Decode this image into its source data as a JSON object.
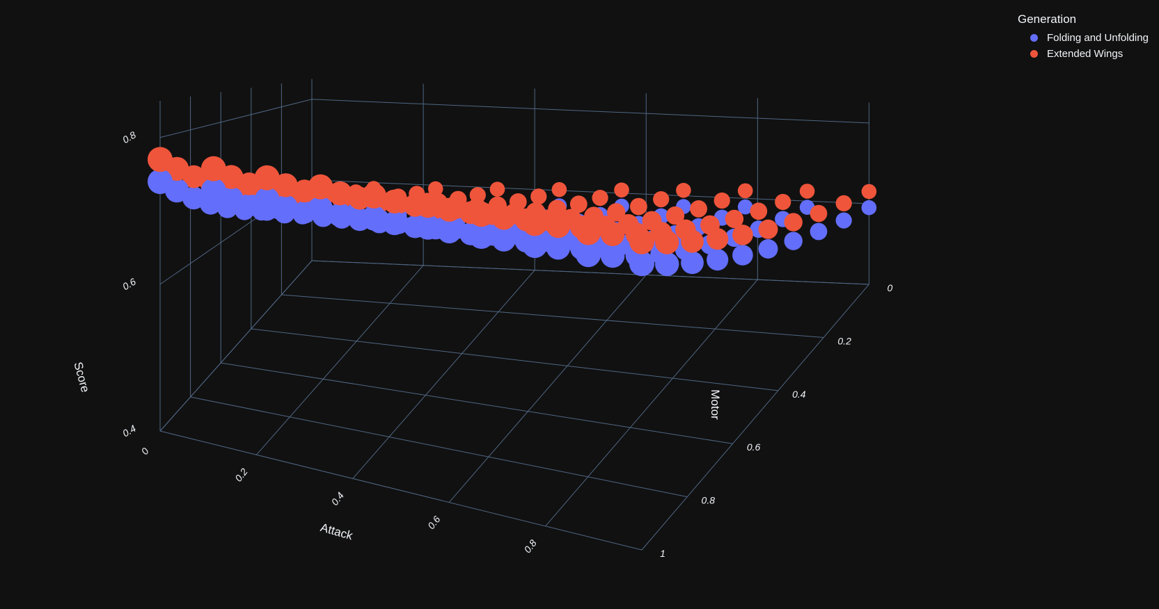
{
  "legend": {
    "title": "Generation",
    "items": [
      {
        "label": "Folding and Unfolding",
        "color": "#636efa"
      },
      {
        "label": "Extended Wings",
        "color": "#ef553b"
      }
    ]
  },
  "chart_data": {
    "type": "scatter3d",
    "title": "",
    "axes": {
      "x": {
        "title": "Attack",
        "ticks": [
          "0",
          "0.2",
          "0.4",
          "0.6",
          "0.8"
        ],
        "range": [
          0,
          1
        ]
      },
      "y": {
        "title": "Motor",
        "ticks": [
          "0",
          "0.2",
          "0.4",
          "0.6",
          "0.8",
          "1"
        ],
        "range": [
          0,
          1
        ]
      },
      "z": {
        "title": "Score",
        "ticks": [
          "0.4",
          "0.6",
          "0.8"
        ],
        "range": [
          0.4,
          0.85
        ]
      }
    },
    "grid": true,
    "legend_position": "top-right",
    "grid_values": [
      0,
      0.111,
      0.222,
      0.333,
      0.444,
      0.556,
      0.667,
      0.778,
      0.889,
      1
    ],
    "series": [
      {
        "name": "Folding and Unfolding",
        "color": "#636efa",
        "score_model": "score = 0.62 + 0.12*motor + 0.05*attack"
      },
      {
        "name": "Extended Wings",
        "color": "#ef553b",
        "score_model": "score = 0.66 + 0.11*motor + 0.05*attack"
      }
    ]
  }
}
